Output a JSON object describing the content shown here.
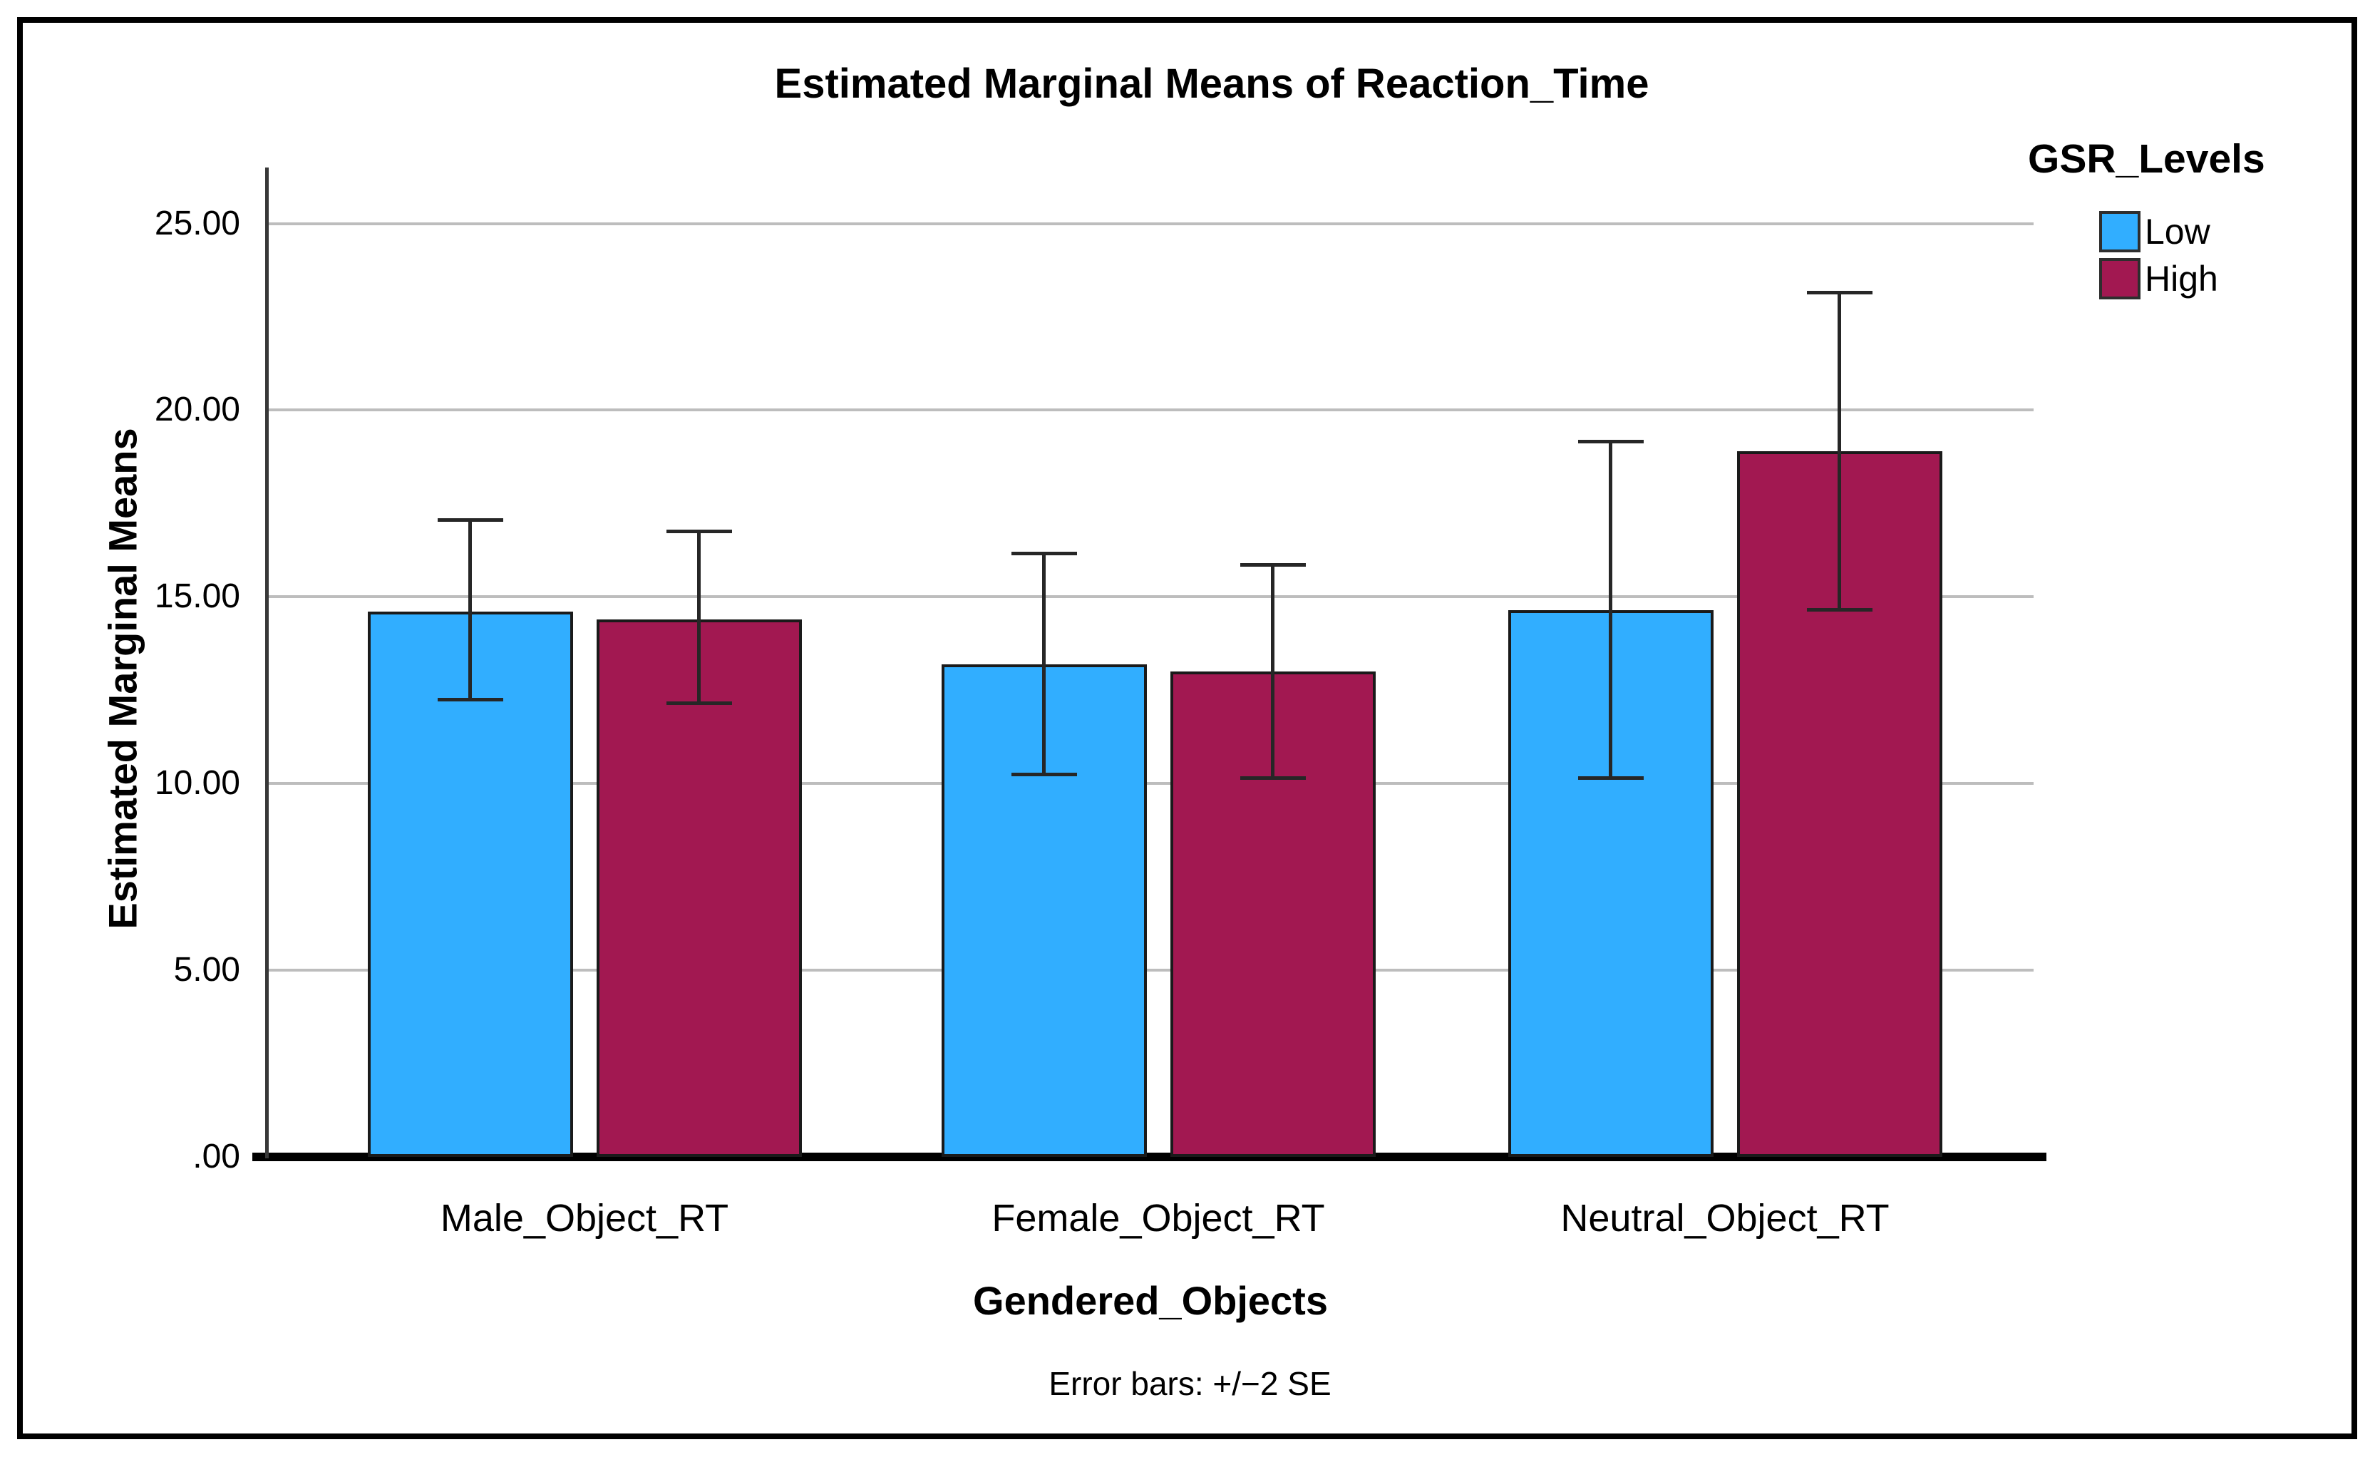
{
  "window": {
    "background_color": "#ffffff",
    "border_color": "#000000"
  },
  "chart_data": {
    "type": "bar",
    "title": "Estimated Marginal Means of Reaction_Time",
    "xlabel": "Gendered_Objects",
    "ylabel": "Estimated Marginal Means",
    "footnote": "Error bars: +/−2 SE",
    "legend_title": "GSR_Levels",
    "legend_position": "top-right",
    "grid": true,
    "categories": [
      "Male_Object_RT",
      "Female_Object_RT",
      "Neutral_Object_RT"
    ],
    "series": [
      {
        "name": "Low",
        "color": "#31AEFF",
        "values": [
          14.6,
          13.2,
          14.65
        ],
        "error_upper": [
          17.1,
          16.2,
          19.2
        ],
        "error_lower": [
          12.2,
          10.2,
          10.1
        ]
      },
      {
        "name": "High",
        "color": "#A21851",
        "values": [
          14.4,
          13.0,
          18.9
        ],
        "error_upper": [
          16.8,
          15.9,
          23.2
        ],
        "error_lower": [
          12.1,
          10.1,
          14.6
        ]
      }
    ],
    "yticks": [
      ".00",
      "5.00",
      "10.00",
      "15.00",
      "20.00",
      "25.00"
    ],
    "ytick_values": [
      0,
      5,
      10,
      15,
      20,
      25
    ],
    "ylim": [
      0,
      26.5
    ],
    "styles": {
      "gridline_color": "#bdbdbd",
      "bar_border_color": "#1a1a1a",
      "error_bar_color": "#262626",
      "y_axis_color": "#383838",
      "x_axis_color": "#000000"
    }
  }
}
